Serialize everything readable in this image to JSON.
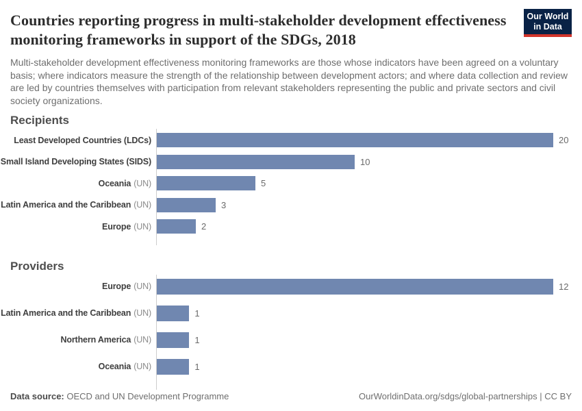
{
  "header": {
    "title": "Countries reporting progress in multi-stakeholder development effectiveness monitoring frameworks in support of the SDGs, 2018",
    "subtitle": "Multi-stakeholder development effectiveness monitoring frameworks are those whose indicators have been agreed on a voluntary basis; where indicators measure the strength of the relationship between development actors; and where data collection and review are led by countries themselves with participation from relevant stakeholders representing the public and private sectors and civil society organizations.",
    "logo": {
      "line1": "Our World",
      "line2": "in Data"
    }
  },
  "chart_data": [
    {
      "type": "bar",
      "orientation": "horizontal",
      "title": "Recipients",
      "grid": false,
      "value_labels": true,
      "xlim": [
        0,
        20
      ],
      "categories": [
        "Least Developed Countries (LDCs)",
        "Small Island Developing States (SIDS)",
        "Oceania (UN)",
        "Latin America and the Caribbean (UN)",
        "Europe (UN)"
      ],
      "values": [
        20,
        10,
        5,
        3,
        2
      ],
      "bars": [
        {
          "name": "Least Developed Countries (LDCs)",
          "qualifier": "",
          "value": 20
        },
        {
          "name": "Small Island Developing States (SIDS)",
          "qualifier": "",
          "value": 10
        },
        {
          "name": "Oceania",
          "qualifier": "(UN)",
          "value": 5
        },
        {
          "name": "Latin America and the Caribbean",
          "qualifier": "(UN)",
          "value": 3
        },
        {
          "name": "Europe",
          "qualifier": "(UN)",
          "value": 2
        }
      ]
    },
    {
      "type": "bar",
      "orientation": "horizontal",
      "title": "Providers",
      "grid": false,
      "value_labels": true,
      "xlim": [
        0,
        12
      ],
      "categories": [
        "Europe (UN)",
        "Latin America and the Caribbean (UN)",
        "Northern America (UN)",
        "Oceania (UN)"
      ],
      "values": [
        12,
        1,
        1,
        1
      ],
      "bars": [
        {
          "name": "Europe",
          "qualifier": "(UN)",
          "value": 12
        },
        {
          "name": "Latin America and the Caribbean",
          "qualifier": "(UN)",
          "value": 1
        },
        {
          "name": "Northern America",
          "qualifier": "(UN)",
          "value": 1
        },
        {
          "name": "Oceania",
          "qualifier": "(UN)",
          "value": 1
        }
      ]
    }
  ],
  "footer": {
    "data_source_label": "Data source:",
    "data_source_value": "OECD and UN Development Programme",
    "attribution": "OurWorldinData.org/sdgs/global-partnerships | CC BY"
  },
  "colors": {
    "bar": "#7087b0",
    "axis": "#cccccc",
    "logo_bg": "#092246",
    "logo_stripe": "#d2352b"
  }
}
